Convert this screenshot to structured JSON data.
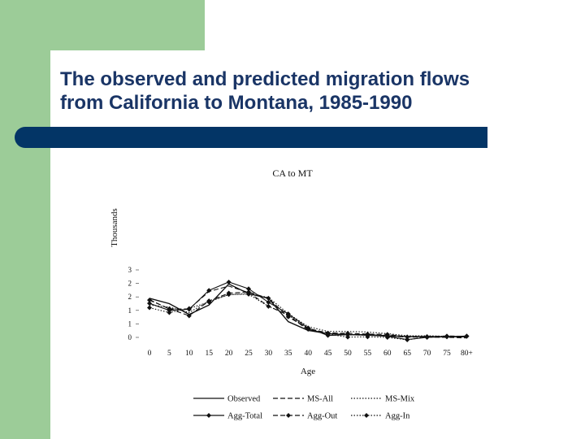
{
  "slide": {
    "title_line1": "The observed and predicted migration flows",
    "title_line2": "from California to Montana, 1985-1990",
    "colors": {
      "left_bar": "#9ccc98",
      "title": "#1a3566",
      "rule": "#033566"
    }
  },
  "chart_data": {
    "type": "line",
    "title": "CA to MT",
    "xlabel": "Age",
    "ylabel": "Thousands",
    "categories": [
      "0",
      "5",
      "10",
      "15",
      "20",
      "25",
      "30",
      "35",
      "40",
      "45",
      "50",
      "55",
      "60",
      "65",
      "70",
      "75",
      "80+"
    ],
    "x_tick_labels": [
      "0",
      "5",
      "10",
      "15",
      "20",
      "25",
      "30",
      "35",
      "40",
      "45",
      "50",
      "55",
      "60",
      "65",
      "70",
      "75",
      "80+"
    ],
    "y_tick_labels": [
      "0",
      "1",
      "1",
      "2",
      "2",
      "3"
    ],
    "ylim": [
      0,
      3
    ],
    "grid": false,
    "legend_position": "bottom",
    "series": [
      {
        "name": "Observed",
        "style": "solid",
        "marker": "none",
        "values": [
          1.45,
          1.25,
          0.85,
          1.2,
          1.98,
          1.62,
          1.45,
          0.58,
          0.26,
          0.14,
          0.1,
          0.1,
          0.06,
          0.03,
          0.03,
          0.02,
          0.02
        ]
      },
      {
        "name": "MS-All",
        "style": "dashed",
        "marker": "none",
        "values": [
          1.4,
          1.05,
          1.05,
          1.7,
          1.9,
          1.66,
          1.16,
          0.82,
          0.27,
          0.19,
          0.1,
          0.08,
          0.05,
          0.01,
          0.01,
          0.0,
          -0.02
        ]
      },
      {
        "name": "MS-Mix",
        "style": "dotted",
        "marker": "none",
        "values": [
          1.2,
          1.12,
          0.92,
          1.35,
          1.58,
          1.62,
          1.48,
          0.88,
          0.4,
          0.22,
          0.22,
          0.2,
          0.14,
          0.06,
          0.06,
          0.04,
          0.02
        ]
      },
      {
        "name": "Agg-Total",
        "style": "solid",
        "marker": "diamond",
        "values": [
          1.26,
          1.0,
          1.04,
          1.74,
          2.05,
          1.8,
          1.3,
          0.87,
          0.35,
          0.07,
          0.1,
          0.08,
          0.04,
          -0.08,
          0.0,
          0.02,
          0.05
        ]
      },
      {
        "name": "Agg-Out",
        "style": "dashed",
        "marker": "diamond",
        "values": [
          1.38,
          1.06,
          0.8,
          1.35,
          1.64,
          1.68,
          1.45,
          0.76,
          0.33,
          0.16,
          0.15,
          0.12,
          0.11,
          0.02,
          0.03,
          0.05,
          0.04
        ]
      },
      {
        "name": "Agg-In",
        "style": "dotted",
        "marker": "diamond",
        "values": [
          1.1,
          0.92,
          1.07,
          1.31,
          1.59,
          1.6,
          1.15,
          0.83,
          0.3,
          0.12,
          0.01,
          0.02,
          0.0,
          -0.09,
          0.02,
          0.03,
          0.04
        ]
      }
    ]
  }
}
